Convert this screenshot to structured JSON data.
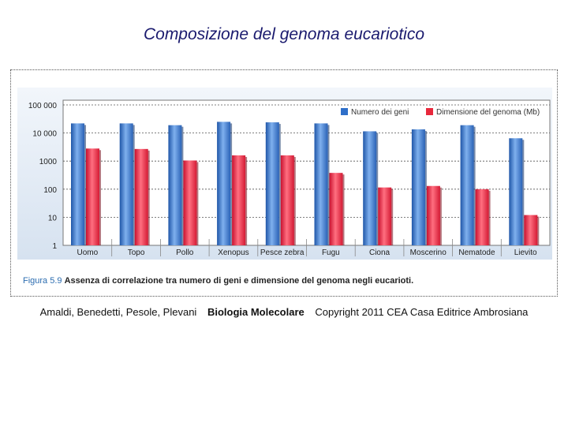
{
  "slide": {
    "title": "Composizione del genoma eucariotico"
  },
  "caption": {
    "figure_number": "Figura 5.9",
    "text": "Assenza di correlazione tra numero di geni e dimensione del genoma negli eucarioti."
  },
  "credits": {
    "authors": "Amaldi, Benedetti, Pesole, Plevani",
    "book": "Biologia Molecolare",
    "copyright": "Copyright 2011 CEA Casa Editrice Ambrosiana"
  },
  "colors": {
    "series_genes": "#2f6fc9",
    "series_genome": "#e8283c",
    "plot_background": "#e4ecf5",
    "title_text": "#1a1a6e"
  },
  "chart_data": {
    "type": "bar",
    "scale": "log",
    "ylim": [
      1,
      100000
    ],
    "y_ticks": [
      "1",
      "10",
      "100",
      "1000",
      "10 000",
      "100 000"
    ],
    "y_tick_values": [
      1,
      10,
      100,
      1000,
      10000,
      100000
    ],
    "grid": true,
    "legend_position": "top-right",
    "categories": [
      "Uomo",
      "Topo",
      "Pollo",
      "Xenopus",
      "Pesce zebra",
      "Fugu",
      "Ciona",
      "Moscerino",
      "Nematode",
      "Lievito"
    ],
    "series": [
      {
        "name": "Numero dei geni",
        "color": "#2f6fc9",
        "values": [
          22000,
          22000,
          19000,
          25000,
          24000,
          22000,
          11500,
          13500,
          19000,
          6500
        ]
      },
      {
        "name": "Dimensione del genoma (Mb)",
        "color": "#e8283c",
        "values": [
          2800,
          2700,
          1050,
          1600,
          1600,
          380,
          115,
          130,
          100,
          12
        ]
      }
    ]
  }
}
